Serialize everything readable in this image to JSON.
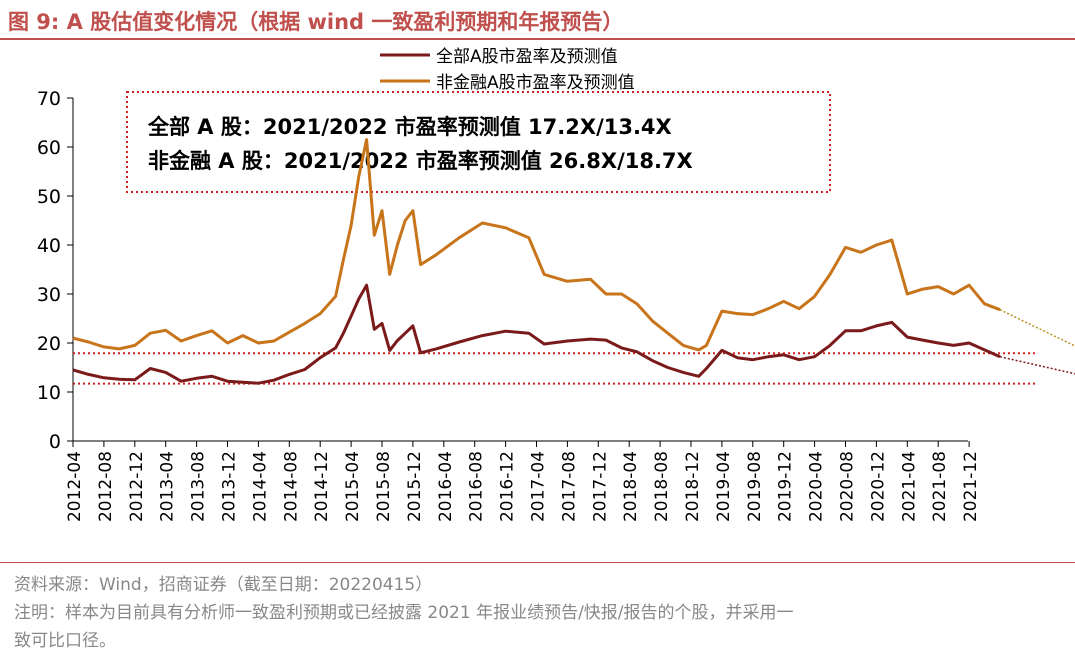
{
  "figure": {
    "title": "图 9:  A 股估值变化情况（根据 wind 一致盈利预期和年报预告）",
    "source": "资料来源：Wind，招商证券（截至日期：20220415）",
    "note_line1": "注明：样本为目前具有分析师一致盈利预期或已经披露 2021 年报业绩预告/快报/报告的个股，并采用一",
    "note_line2": "致可比口径。"
  },
  "colors": {
    "all_a": "#7b1a1a",
    "non_fin": "#c8741a",
    "accent": "#c0504d",
    "ref_line": "#d21f1f"
  },
  "chart_data": {
    "type": "line",
    "title": "",
    "xlabel": "",
    "ylabel": "",
    "ylim": [
      0,
      70
    ],
    "yticks": [
      0,
      10,
      20,
      30,
      40,
      50,
      60,
      70
    ],
    "xticks": [
      "2012-04",
      "2012-08",
      "2012-12",
      "2013-04",
      "2013-08",
      "2013-12",
      "2014-04",
      "2014-08",
      "2014-12",
      "2015-04",
      "2015-08",
      "2015-12",
      "2016-04",
      "2016-08",
      "2016-12",
      "2017-04",
      "2017-08",
      "2017-12",
      "2018-04",
      "2018-08",
      "2018-12",
      "2019-04",
      "2019-08",
      "2019-12",
      "2020-04",
      "2020-08",
      "2020-12",
      "2021-04",
      "2021-08",
      "2021-12"
    ],
    "legend_position": "top-center",
    "annotation_lines": [
      "全部 A 股：2021/2022 市盈率预测值 17.2X/13.4X",
      "非金融 A 股：2021/2022 市盈率预测值 26.8X/18.7X"
    ],
    "reference_levels": [
      17.9,
      11.7
    ],
    "forecast_arrows": [
      {
        "series": "全部A股市盈率及预测值",
        "from": [
          "2022-04",
          17.2
        ],
        "to": [
          "2022-12",
          13.4
        ]
      },
      {
        "series": "非金融A股市盈率及预测值",
        "from": [
          "2022-04",
          26.8
        ],
        "to": [
          "2022-12",
          18.7
        ]
      }
    ],
    "series": [
      {
        "name": "全部A股市盈率及预测值",
        "color": "#7b1a1a",
        "points": [
          [
            "2012-04",
            14.5
          ],
          [
            "2012-06",
            13.6
          ],
          [
            "2012-08",
            12.9
          ],
          [
            "2012-10",
            12.6
          ],
          [
            "2012-12",
            12.5
          ],
          [
            "2013-02",
            14.8
          ],
          [
            "2013-04",
            14.0
          ],
          [
            "2013-06",
            12.2
          ],
          [
            "2013-08",
            12.8
          ],
          [
            "2013-10",
            13.2
          ],
          [
            "2013-12",
            12.2
          ],
          [
            "2014-02",
            12.0
          ],
          [
            "2014-04",
            11.8
          ],
          [
            "2014-06",
            12.4
          ],
          [
            "2014-08",
            13.6
          ],
          [
            "2014-10",
            14.6
          ],
          [
            "2014-12",
            17.0
          ],
          [
            "2015-02",
            19.0
          ],
          [
            "2015-03",
            22.0
          ],
          [
            "2015-04",
            25.5
          ],
          [
            "2015-05",
            29.0
          ],
          [
            "2015-06",
            31.8
          ],
          [
            "2015-07",
            22.8
          ],
          [
            "2015-08",
            24.0
          ],
          [
            "2015-09",
            18.5
          ],
          [
            "2015-10",
            20.5
          ],
          [
            "2015-11",
            22.0
          ],
          [
            "2015-12",
            23.5
          ],
          [
            "2016-01",
            18.0
          ],
          [
            "2016-03",
            18.8
          ],
          [
            "2016-06",
            20.2
          ],
          [
            "2016-09",
            21.5
          ],
          [
            "2016-12",
            22.4
          ],
          [
            "2017-03",
            22.0
          ],
          [
            "2017-05",
            19.8
          ],
          [
            "2017-08",
            20.4
          ],
          [
            "2017-11",
            20.8
          ],
          [
            "2018-01",
            20.6
          ],
          [
            "2018-03",
            19.0
          ],
          [
            "2018-05",
            18.2
          ],
          [
            "2018-07",
            16.4
          ],
          [
            "2018-09",
            15.0
          ],
          [
            "2018-11",
            14.0
          ],
          [
            "2019-01",
            13.2
          ],
          [
            "2019-02",
            14.8
          ],
          [
            "2019-04",
            18.5
          ],
          [
            "2019-06",
            17.0
          ],
          [
            "2019-08",
            16.6
          ],
          [
            "2019-10",
            17.2
          ],
          [
            "2019-12",
            17.6
          ],
          [
            "2020-02",
            16.6
          ],
          [
            "2020-04",
            17.2
          ],
          [
            "2020-06",
            19.5
          ],
          [
            "2020-08",
            22.5
          ],
          [
            "2020-10",
            22.5
          ],
          [
            "2020-12",
            23.5
          ],
          [
            "2021-02",
            24.2
          ],
          [
            "2021-04",
            21.2
          ],
          [
            "2021-06",
            20.6
          ],
          [
            "2021-08",
            20.0
          ],
          [
            "2021-10",
            19.5
          ],
          [
            "2021-12",
            20.0
          ],
          [
            "2022-02",
            18.6
          ],
          [
            "2022-04",
            17.2
          ]
        ]
      },
      {
        "name": "非金融A股市盈率及预测值",
        "color": "#c8741a",
        "points": [
          [
            "2012-04",
            21.0
          ],
          [
            "2012-06",
            20.2
          ],
          [
            "2012-08",
            19.2
          ],
          [
            "2012-10",
            18.8
          ],
          [
            "2012-12",
            19.5
          ],
          [
            "2013-02",
            22.0
          ],
          [
            "2013-04",
            22.6
          ],
          [
            "2013-06",
            20.4
          ],
          [
            "2013-08",
            21.5
          ],
          [
            "2013-10",
            22.5
          ],
          [
            "2013-12",
            20.0
          ],
          [
            "2014-02",
            21.5
          ],
          [
            "2014-04",
            20.0
          ],
          [
            "2014-06",
            20.4
          ],
          [
            "2014-08",
            22.2
          ],
          [
            "2014-10",
            24.0
          ],
          [
            "2014-12",
            26.0
          ],
          [
            "2015-02",
            29.5
          ],
          [
            "2015-03",
            37.0
          ],
          [
            "2015-04",
            44.0
          ],
          [
            "2015-05",
            54.0
          ],
          [
            "2015-06",
            61.5
          ],
          [
            "2015-07",
            42.0
          ],
          [
            "2015-08",
            47.0
          ],
          [
            "2015-09",
            34.0
          ],
          [
            "2015-10",
            40.0
          ],
          [
            "2015-11",
            45.0
          ],
          [
            "2015-12",
            47.0
          ],
          [
            "2016-01",
            36.0
          ],
          [
            "2016-03",
            38.0
          ],
          [
            "2016-06",
            41.5
          ],
          [
            "2016-09",
            44.5
          ],
          [
            "2016-12",
            43.5
          ],
          [
            "2017-03",
            41.5
          ],
          [
            "2017-05",
            34.0
          ],
          [
            "2017-08",
            32.6
          ],
          [
            "2017-11",
            33.0
          ],
          [
            "2018-01",
            30.0
          ],
          [
            "2018-03",
            30.0
          ],
          [
            "2018-05",
            28.0
          ],
          [
            "2018-07",
            24.5
          ],
          [
            "2018-09",
            22.0
          ],
          [
            "2018-11",
            19.5
          ],
          [
            "2019-01",
            18.6
          ],
          [
            "2019-02",
            19.5
          ],
          [
            "2019-04",
            26.5
          ],
          [
            "2019-06",
            26.0
          ],
          [
            "2019-08",
            25.8
          ],
          [
            "2019-10",
            27.0
          ],
          [
            "2019-12",
            28.5
          ],
          [
            "2020-02",
            27.0
          ],
          [
            "2020-04",
            29.5
          ],
          [
            "2020-06",
            34.0
          ],
          [
            "2020-08",
            39.5
          ],
          [
            "2020-10",
            38.5
          ],
          [
            "2020-12",
            40.0
          ],
          [
            "2021-02",
            41.0
          ],
          [
            "2021-04",
            30.0
          ],
          [
            "2021-06",
            31.0
          ],
          [
            "2021-08",
            31.5
          ],
          [
            "2021-10",
            30.0
          ],
          [
            "2021-12",
            31.8
          ],
          [
            "2022-02",
            28.0
          ],
          [
            "2022-04",
            26.8
          ]
        ]
      }
    ]
  }
}
